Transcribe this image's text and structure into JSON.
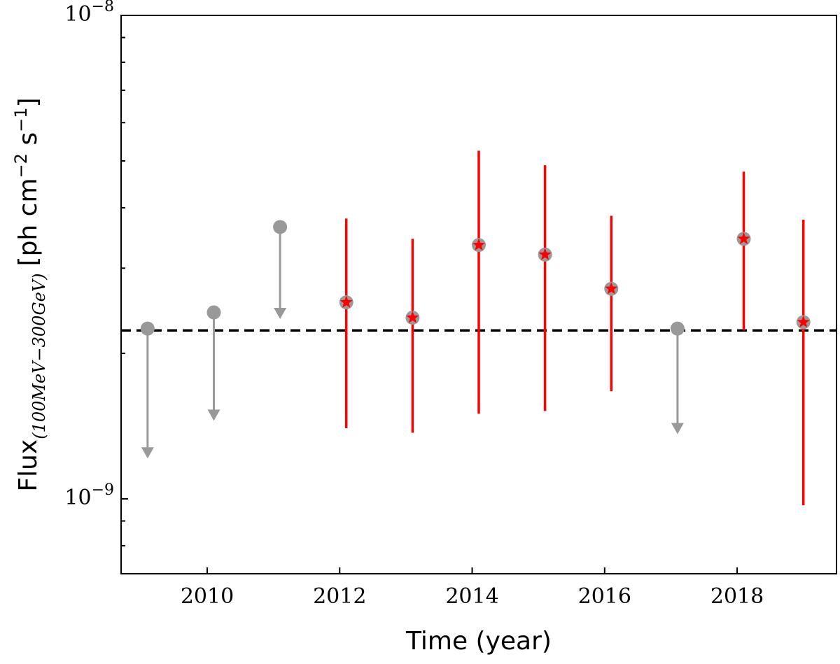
{
  "chart_data": {
    "type": "scatter",
    "title": "",
    "xlabel": "Time (year)",
    "ylabel": {
      "prefix": "Flux",
      "subscript": "(100MeV−300GeV)",
      "unit": "[ph cm",
      "unit_exp1": "−2",
      "unit_mid": " s",
      "unit_exp2": "−1",
      "unit_end": "]"
    },
    "x_scale": "linear",
    "y_scale": "log",
    "xlim": [
      2008.7,
      2019.5
    ],
    "ylim": [
      7e-10,
      1e-08
    ],
    "x_ticks": [
      2010,
      2012,
      2014,
      2016,
      2018
    ],
    "x_tick_labels": [
      "2010",
      "2012",
      "2014",
      "2016",
      "2018"
    ],
    "y_major_ticks": [
      {
        "value": 1e-09,
        "base": "10",
        "exp": "−9"
      },
      {
        "value": 1e-08,
        "base": "10",
        "exp": "−8"
      }
    ],
    "y_minor_ticks": [
      7e-10,
      8e-10,
      9e-10,
      2e-09,
      3e-09,
      4e-09,
      5e-09,
      6e-09,
      7e-09,
      8e-09,
      9e-09
    ],
    "reference_line": {
      "y": 2.23e-09,
      "style": "dashed",
      "color": "#000000"
    },
    "series": [
      {
        "marker": "circle with downward arrow (upper limit)",
        "color": "#999999",
        "points": [
          {
            "x": 2009.1,
            "y": 2.25e-09,
            "y_arrow_end": 1.22e-09
          },
          {
            "x": 2010.1,
            "y": 2.43e-09,
            "y_arrow_end": 1.46e-09
          },
          {
            "x": 2011.1,
            "y": 3.65e-09,
            "y_arrow_end": 2.37e-09
          },
          {
            "x": 2017.1,
            "y": 2.25e-09,
            "y_arrow_end": 1.37e-09
          }
        ]
      },
      {
        "marker": "red star on grey circle, red error bar",
        "color": "#ff0000",
        "marker_bg": "#999999",
        "points": [
          {
            "x": 2012.1,
            "y": 2.55e-09,
            "low": 1.4e-09,
            "high": 3.8e-09
          },
          {
            "x": 2013.1,
            "y": 2.37e-09,
            "low": 1.37e-09,
            "high": 3.45e-09
          },
          {
            "x": 2014.1,
            "y": 3.35e-09,
            "low": 1.5e-09,
            "high": 5.25e-09
          },
          {
            "x": 2015.1,
            "y": 3.2e-09,
            "low": 1.52e-09,
            "high": 4.9e-09
          },
          {
            "x": 2016.1,
            "y": 2.72e-09,
            "low": 1.67e-09,
            "high": 3.85e-09
          },
          {
            "x": 2018.1,
            "y": 3.45e-09,
            "low": 2.23e-09,
            "high": 4.75e-09
          },
          {
            "x": 2019.0,
            "y": 2.32e-09,
            "low": 9.7e-10,
            "high": 3.78e-09
          }
        ]
      }
    ]
  }
}
